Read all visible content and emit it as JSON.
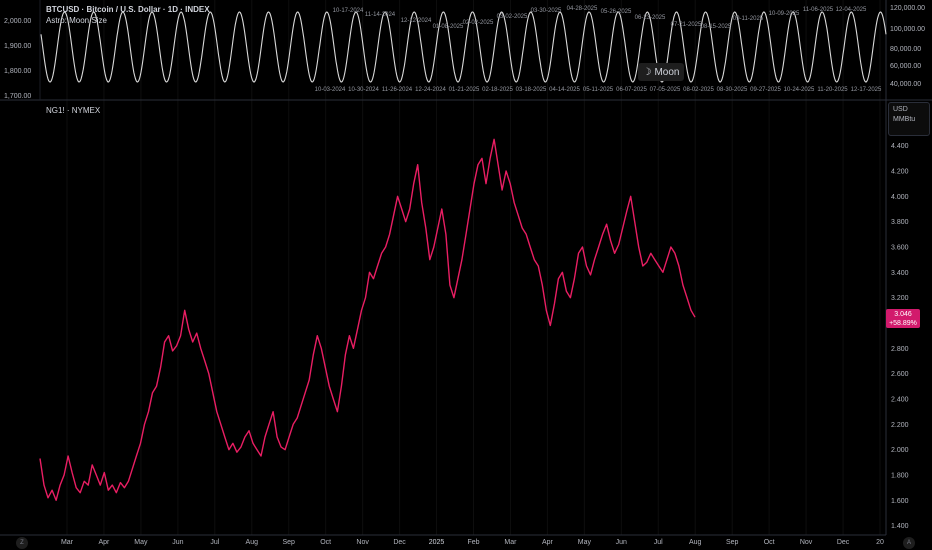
{
  "top_pane": {
    "title": "BTCUSD · Bitcoin / U.S. Dollar · 1D · INDEX",
    "indicator": "Astro: Moon Size",
    "left_axis": [
      "2,000.00",
      "1,900.00",
      "1,800.00",
      "1,700.00"
    ],
    "right_axis": [
      "120,000.00",
      "100,000.00",
      "80,000.00",
      "60,000.00",
      "40,000.00"
    ],
    "top_dates": [
      "10-17-2024",
      "11-14-2024",
      "12-12-2024",
      "01-08-2025",
      "02-02-2025",
      "03-02-2025",
      "03-30-2025",
      "04-28-2025",
      "05-26-2025",
      "06-23-2025",
      "07-21-2025",
      "08-15-2025",
      "09-11-2025",
      "10-09-2025",
      "11-06-2025",
      "12-04-2025"
    ],
    "bottom_dates": [
      "10-03-2024",
      "10-30-2024",
      "11-26-2024",
      "12-24-2024",
      "01-21-2025",
      "02-18-2025",
      "03-18-2025",
      "04-14-2025",
      "05-11-2025",
      "06-07-2025",
      "07-05-2025",
      "08-02-2025",
      "08-30-2025",
      "09-27-2025",
      "10-24-2025",
      "11-20-2025",
      "12-17-2025"
    ],
    "moon_button": "Moon"
  },
  "main_pane": {
    "symbol": "NG1! · NYMEX",
    "unit_currency": "USD",
    "unit_measure": "MMBtu",
    "price_badge_value": "3.046",
    "price_badge_change": "+58.89%",
    "zoom_label": "Z",
    "auto_label": "A"
  },
  "chart_data": [
    {
      "type": "line",
      "title": "BTCUSD · Bitcoin / U.S. Dollar · 1D · INDEX",
      "series": [
        {
          "name": "Astro: Moon Size",
          "shape": "oscillation",
          "cycles": 29,
          "min": 1780,
          "max": 1990
        }
      ],
      "ylim": [
        1700,
        2020
      ],
      "grid": false
    },
    {
      "type": "line",
      "title": "NG1! · NYMEX",
      "color": "#e91e63",
      "xlabels": [
        "Mar",
        "Apr",
        "May",
        "Jun",
        "Jul",
        "Aug",
        "Sep",
        "Oct",
        "Nov",
        "Dec",
        "2025",
        "Feb",
        "Mar",
        "Apr",
        "May",
        "Jun",
        "Jul",
        "Aug",
        "Sep",
        "Oct",
        "Nov",
        "Dec",
        "20"
      ],
      "ytick_labels": [
        "4.400",
        "4.200",
        "4.000",
        "3.800",
        "3.600",
        "3.400",
        "3.200",
        "3.000",
        "2.800",
        "2.600",
        "2.400",
        "2.200",
        "2.000",
        "1.800",
        "1.600",
        "1.400"
      ],
      "ylim": [
        1.35,
        4.5
      ],
      "series": [
        {
          "values": [
            1.93,
            1.72,
            1.62,
            1.68,
            1.6,
            1.72,
            1.8,
            1.95,
            1.82,
            1.7,
            1.66,
            1.75,
            1.72,
            1.88,
            1.8,
            1.72,
            1.82,
            1.68,
            1.72,
            1.66,
            1.74,
            1.7,
            1.75,
            1.85,
            1.95,
            2.05,
            2.2,
            2.3,
            2.45,
            2.5,
            2.65,
            2.85,
            2.9,
            2.78,
            2.82,
            2.9,
            3.1,
            2.95,
            2.85,
            2.92,
            2.8,
            2.7,
            2.6,
            2.45,
            2.3,
            2.2,
            2.1,
            2.0,
            2.05,
            1.98,
            2.02,
            2.1,
            2.15,
            2.05,
            2.0,
            1.95,
            2.1,
            2.2,
            2.3,
            2.1,
            2.02,
            2.0,
            2.1,
            2.2,
            2.25,
            2.35,
            2.45,
            2.55,
            2.75,
            2.9,
            2.8,
            2.65,
            2.5,
            2.4,
            2.3,
            2.5,
            2.75,
            2.9,
            2.8,
            2.95,
            3.1,
            3.2,
            3.4,
            3.35,
            3.45,
            3.55,
            3.6,
            3.7,
            3.85,
            4.0,
            3.9,
            3.8,
            3.9,
            4.1,
            4.25,
            3.95,
            3.75,
            3.5,
            3.6,
            3.75,
            3.9,
            3.7,
            3.3,
            3.2,
            3.35,
            3.5,
            3.7,
            3.9,
            4.1,
            4.25,
            4.3,
            4.1,
            4.3,
            4.45,
            4.25,
            4.05,
            4.2,
            4.1,
            3.95,
            3.85,
            3.75,
            3.7,
            3.6,
            3.5,
            3.45,
            3.3,
            3.1,
            2.98,
            3.15,
            3.35,
            3.4,
            3.25,
            3.2,
            3.35,
            3.55,
            3.6,
            3.45,
            3.38,
            3.5,
            3.6,
            3.7,
            3.78,
            3.65,
            3.55,
            3.62,
            3.75,
            3.88,
            4.0,
            3.8,
            3.6,
            3.45,
            3.48,
            3.55,
            3.5,
            3.45,
            3.4,
            3.5,
            3.6,
            3.55,
            3.45,
            3.3,
            3.2,
            3.1,
            3.046
          ]
        }
      ]
    }
  ]
}
